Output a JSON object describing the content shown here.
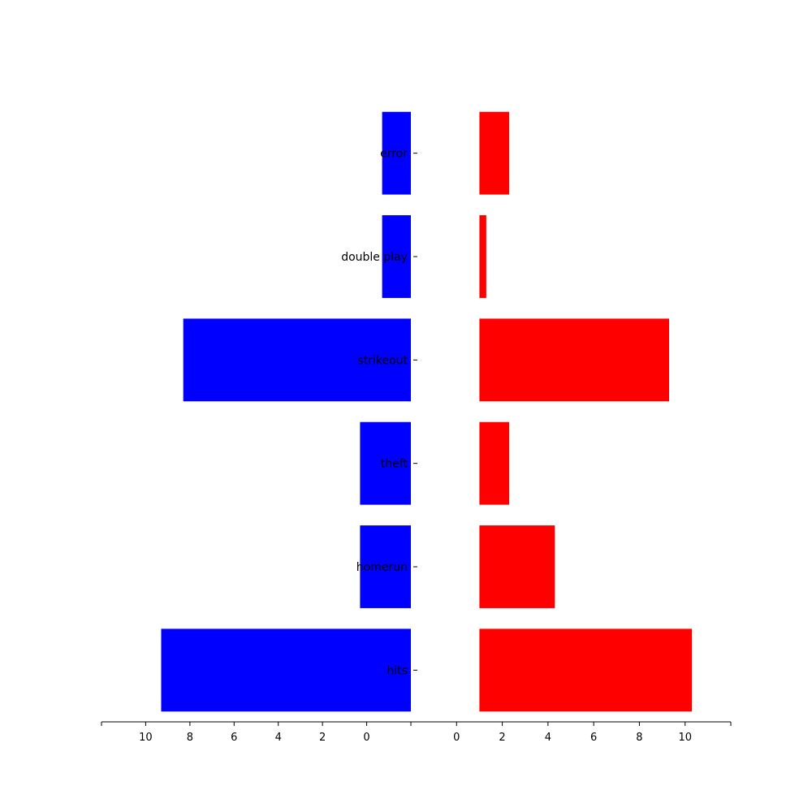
{
  "chart_data": {
    "type": "bar",
    "orientation": "horizontal",
    "layout": "back-to-back",
    "categories": [
      "hits",
      "homerun",
      "theft",
      "strikeout",
      "double play",
      "error"
    ],
    "series": [
      {
        "side": "left",
        "color": "#0000ff",
        "values": [
          11.3,
          2.3,
          2.3,
          10.3,
          1.3,
          1.3
        ]
      },
      {
        "side": "right",
        "color": "#ff0000",
        "values": [
          9.3,
          3.3,
          1.3,
          8.3,
          0.3,
          1.3
        ]
      }
    ],
    "x_ticks": [
      0,
      2,
      4,
      6,
      8,
      10
    ],
    "xlim_left": [
      12,
      -2
    ],
    "xlim_right": [
      -2,
      12
    ],
    "grid": false,
    "legend": "none"
  }
}
